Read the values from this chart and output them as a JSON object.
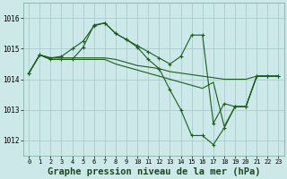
{
  "background_color": "#cce8e8",
  "grid_color": "#aacccc",
  "line_color": "#1a5e1a",
  "xlabel": "Graphe pression niveau de la mer (hPa)",
  "xlabel_fontsize": 7.5,
  "ylim": [
    1011.5,
    1016.5
  ],
  "xlim": [
    -0.5,
    23.5
  ],
  "yticks": [
    1012,
    1013,
    1014,
    1015,
    1016
  ],
  "xticks": [
    0,
    1,
    2,
    3,
    4,
    5,
    6,
    7,
    8,
    9,
    10,
    11,
    12,
    13,
    14,
    15,
    16,
    17,
    18,
    19,
    20,
    21,
    22,
    23
  ],
  "series": [
    {
      "y": [
        1014.2,
        1014.8,
        1014.7,
        1014.7,
        1014.7,
        1014.7,
        1014.7,
        1014.7,
        1014.65,
        1014.55,
        1014.45,
        1014.4,
        1014.35,
        1014.25,
        1014.2,
        1014.15,
        1014.1,
        1014.05,
        1014.0,
        1014.0,
        1014.0,
        1014.1,
        1014.1,
        1014.1
      ],
      "marker": false
    },
    {
      "y": [
        1014.2,
        1014.8,
        1014.7,
        1014.75,
        1015.0,
        1015.25,
        1015.75,
        1015.85,
        1015.5,
        1015.3,
        1015.05,
        1014.65,
        1014.35,
        1013.65,
        1013.0,
        1012.15,
        1012.15,
        1011.85,
        1012.4,
        1013.1,
        1013.1,
        1014.1,
        1014.1,
        1014.1
      ],
      "marker": true
    },
    {
      "y": [
        1014.2,
        1014.8,
        1014.65,
        1014.65,
        1014.65,
        1015.05,
        1015.78,
        1015.85,
        1015.5,
        1015.3,
        1015.1,
        1014.9,
        1014.7,
        1014.5,
        1014.75,
        1015.45,
        1015.45,
        1012.55,
        1013.2,
        1013.1,
        1013.1,
        1014.1,
        1014.1,
        1014.1
      ],
      "marker": true
    },
    {
      "y": [
        1014.2,
        1014.8,
        1014.65,
        1014.65,
        1014.65,
        1014.65,
        1014.65,
        1014.65,
        1014.5,
        1014.4,
        1014.3,
        1014.2,
        1014.1,
        1014.0,
        1013.9,
        1013.8,
        1013.7,
        1013.9,
        1012.45,
        1013.1,
        1013.1,
        1014.1,
        1014.1,
        1014.1
      ],
      "marker": false
    }
  ]
}
